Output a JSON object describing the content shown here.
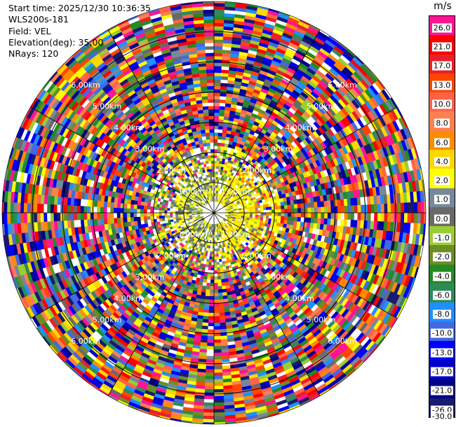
{
  "info": {
    "start_time": "Start time: 2025/12/30 10:36:35",
    "instrument": "WLS200s-181",
    "field": "Field: VEL",
    "elevation": "Elevation(deg): 35.00",
    "nrays": "NRays: 120"
  },
  "colorbar": {
    "unit": "m/s",
    "bins": [
      {
        "label": "26.0",
        "color": "#ff1493"
      },
      {
        "label": "21.0",
        "color": "#ff0000"
      },
      {
        "label": "17.0",
        "color": "#e8202a"
      },
      {
        "label": "13.0",
        "color": "#ff4500"
      },
      {
        "label": "10.0",
        "color": "#ff6347"
      },
      {
        "label": "8.0",
        "color": "#ff7f50"
      },
      {
        "label": "6.0",
        "color": "#ff8c00"
      },
      {
        "label": "4.0",
        "color": "#ffd700"
      },
      {
        "label": "2.0",
        "color": "#ffff00"
      },
      {
        "label": "1.0",
        "color": "#778899"
      },
      {
        "label": "0.0",
        "color": "#696969"
      },
      {
        "label": "-1.0",
        "color": "#9acd32"
      },
      {
        "label": "-2.0",
        "color": "#6b8e23"
      },
      {
        "label": "-4.0",
        "color": "#228b22"
      },
      {
        "label": "-6.0",
        "color": "#2e8b57"
      },
      {
        "label": "-8.0",
        "color": "#1e90ff"
      },
      {
        "label": "-10.0",
        "color": "#4169e1"
      },
      {
        "label": "-13.0",
        "color": "#0000ff"
      },
      {
        "label": "-17.0",
        "color": "#0000cd"
      },
      {
        "label": "-21.0",
        "color": "#00008b"
      },
      {
        "label": "-26.0",
        "color": "#191970"
      }
    ],
    "bottom_label": "-30.0"
  },
  "chart_data": {
    "type": "heatmap",
    "subtype": "polar-ppi",
    "field": "VEL",
    "units": "m/s",
    "elevation_deg": 35.0,
    "nrays": 120,
    "max_range_km": 7.0,
    "range_rings_km": [
      1.0,
      2.0,
      3.0,
      4.0,
      5.0,
      6.0
    ],
    "range_ring_labels": [
      "1.00km",
      "2.00km",
      "3.00km",
      "4.00km",
      "5.00km",
      "6.00km"
    ],
    "color_scale": [
      -30,
      -26,
      -21,
      -17,
      -13,
      -10,
      -8,
      -6,
      -4,
      -2,
      -1,
      0,
      1,
      2,
      4,
      6,
      8,
      10,
      13,
      17,
      21,
      26,
      30
    ],
    "pattern": "near-field (0-1.5 km) mostly -1 to 4 m/s (grey/olive/yellow); beyond ~2 km noisy values spanning full scale"
  }
}
